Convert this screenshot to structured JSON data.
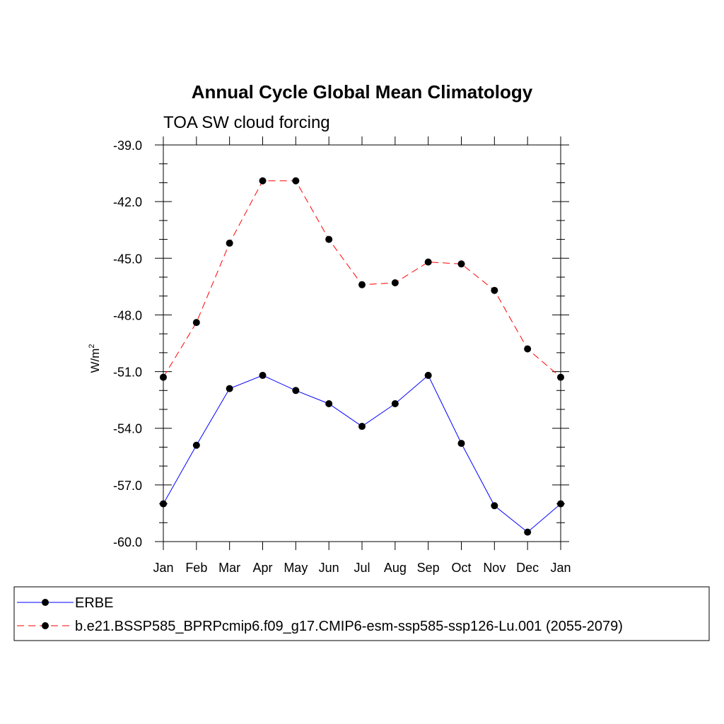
{
  "chart_data": {
    "type": "line",
    "title": "Annual Cycle Global Mean Climatology",
    "subtitle": "TOA SW cloud forcing",
    "ylabel": "W/m",
    "ylabel_superscript": "2",
    "xlabel": "",
    "ylim": [
      -60.0,
      -39.0
    ],
    "yticks": [
      -60.0,
      -57.0,
      -54.0,
      -51.0,
      -48.0,
      -45.0,
      -42.0,
      -39.0
    ],
    "ytick_labels": [
      "-60.0",
      "-57.0",
      "-54.0",
      "-51.0",
      "-48.0",
      "-45.0",
      "-42.0",
      "-39.0"
    ],
    "categories": [
      "Jan",
      "Feb",
      "Mar",
      "Apr",
      "May",
      "Jun",
      "Jul",
      "Aug",
      "Sep",
      "Oct",
      "Nov",
      "Dec",
      "Jan"
    ],
    "series": [
      {
        "name": "ERBE",
        "color": "#0000ff",
        "dash": "solid",
        "values": [
          -58.0,
          -54.9,
          -51.9,
          -51.2,
          -52.0,
          -52.7,
          -53.9,
          -52.7,
          -51.2,
          -54.8,
          -58.1,
          -59.5,
          -58.0
        ]
      },
      {
        "name": "b.e21.BSSP585_BPRPcmip6.f09_g17.CMIP6-esm-ssp585-ssp126-Lu.001 (2055-2079)",
        "color": "#ff0000",
        "dash": "dashed",
        "values": [
          -51.3,
          -48.4,
          -44.2,
          -40.9,
          -40.9,
          -44.0,
          -46.4,
          -46.3,
          -45.2,
          -45.3,
          -46.7,
          -49.8,
          -51.3
        ]
      }
    ]
  }
}
